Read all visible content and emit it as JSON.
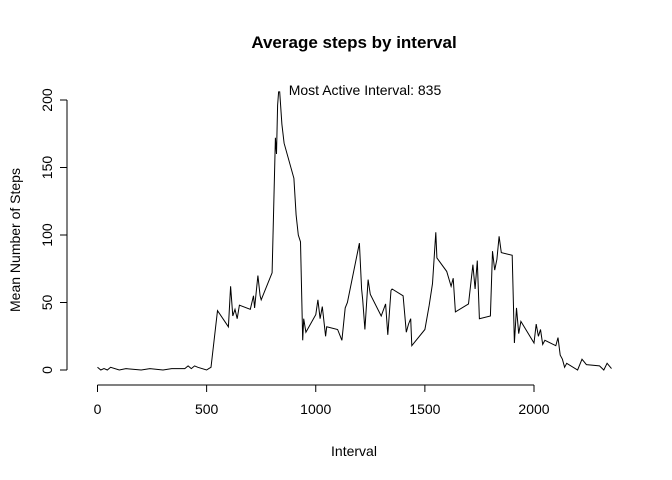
{
  "chart_data": {
    "type": "line",
    "title": "Average steps by interval",
    "xlabel": "Interval",
    "ylabel": "Mean Number of Steps",
    "annotation": "Most Active Interval: 835",
    "xlim": [
      0,
      2400
    ],
    "ylim": [
      0,
      200
    ],
    "xticks": [
      0,
      500,
      1000,
      1500,
      2000
    ],
    "yticks": [
      0,
      50,
      100,
      150,
      200
    ],
    "grid": false,
    "line_color": "#000000",
    "series": [
      {
        "x": [
          0,
          15,
          30,
          45,
          60,
          100,
          130,
          200,
          240,
          300,
          340,
          400,
          415,
          430,
          445,
          460,
          500,
          510,
          520,
          550,
          600,
          610,
          620,
          630,
          640,
          650,
          700,
          715,
          720,
          735,
          745,
          750,
          800,
          815,
          820,
          825,
          830,
          835,
          845,
          855,
          900,
          910,
          920,
          930,
          940,
          945,
          955,
          1000,
          1010,
          1020,
          1030,
          1045,
          1050,
          1100,
          1120,
          1135,
          1145,
          1200,
          1210,
          1215,
          1225,
          1240,
          1250,
          1300,
          1320,
          1330,
          1345,
          1350,
          1400,
          1415,
          1425,
          1435,
          1440,
          1500,
          1520,
          1535,
          1550,
          1555,
          1600,
          1620,
          1630,
          1640,
          1700,
          1720,
          1730,
          1740,
          1750,
          1800,
          1810,
          1820,
          1830,
          1840,
          1850,
          1900,
          1910,
          1920,
          1930,
          1940,
          2000,
          2010,
          2020,
          2030,
          2040,
          2050,
          2100,
          2110,
          2120,
          2130,
          2140,
          2150,
          2200,
          2220,
          2240,
          2300,
          2320,
          2335,
          2345,
          2355
        ],
        "values": [
          2,
          0,
          1,
          0,
          2,
          0,
          1,
          0,
          1,
          0,
          1,
          1,
          3,
          1,
          3,
          2,
          0,
          1,
          2,
          44,
          32,
          62,
          40,
          45,
          38,
          48,
          45,
          55,
          46,
          70,
          55,
          52,
          72,
          172,
          160,
          196,
          206,
          206,
          182,
          168,
          142,
          115,
          100,
          95,
          22,
          38,
          28,
          41,
          52,
          38,
          47,
          25,
          32,
          30,
          22,
          46,
          50,
          94,
          60,
          52,
          30,
          67,
          56,
          40,
          49,
          26,
          59,
          60,
          55,
          28,
          34,
          38,
          18,
          30,
          48,
          64,
          102,
          83,
          73,
          62,
          68,
          43,
          49,
          78,
          60,
          81,
          38,
          40,
          88,
          74,
          82,
          99,
          87,
          85,
          20,
          46,
          27,
          36,
          20,
          34,
          25,
          30,
          19,
          22,
          18,
          24,
          11,
          8,
          2,
          5,
          0,
          8,
          4,
          3,
          0,
          5,
          3,
          1
        ]
      }
    ]
  }
}
